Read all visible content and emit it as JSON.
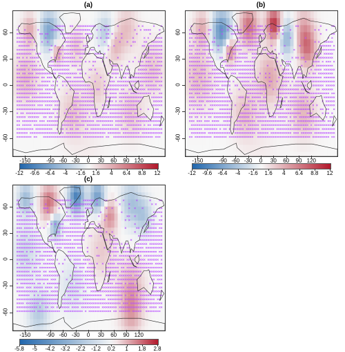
{
  "panels": [
    {
      "title": "(a)",
      "x_ticks": [
        "-150",
        "-90",
        "-60",
        "-30",
        "0",
        "30",
        "60",
        "90",
        "120"
      ],
      "y_ticks": [
        "60",
        "30",
        "0",
        "-30",
        "-60"
      ],
      "colorbar": {
        "labels": [
          "-12",
          "-9.6",
          "-6.4",
          "-4",
          "-1.6",
          "1.6",
          "4",
          "6.4",
          "8.8",
          "12"
        ],
        "min": -12,
        "max": 12
      }
    },
    {
      "title": "(b)",
      "x_ticks": [
        "-150",
        "-90",
        "-60",
        "-30",
        "0",
        "30",
        "60",
        "90",
        "120"
      ],
      "y_ticks": [
        "60",
        "30",
        "0",
        "-30",
        "-60"
      ],
      "colorbar": {
        "labels": [
          "-12",
          "-9.6",
          "-6.4",
          "-4",
          "-1.6",
          "1.6",
          "4",
          "6.4",
          "8.8",
          "12"
        ],
        "min": -12,
        "max": 12
      }
    },
    {
      "title": "(c)",
      "x_ticks": [
        "-150",
        "-90",
        "-60",
        "-30",
        "0",
        "30",
        "60",
        "90",
        "120"
      ],
      "y_ticks": [
        "60",
        "30",
        "0",
        "-30",
        "-60"
      ],
      "colorbar": {
        "labels": [
          "-5.8",
          "-5",
          "-4.2",
          "-3.2",
          "-2.2",
          "-1.2",
          "0.2",
          "1",
          "1.8",
          "2.8"
        ],
        "min": -5.8,
        "max": 2.8
      }
    }
  ],
  "colors": {
    "cold": "#2166ac",
    "neutral": "#f7f7f7",
    "warm": "#b2182b",
    "stipple": "#b84dff",
    "coast": "#222222"
  }
}
